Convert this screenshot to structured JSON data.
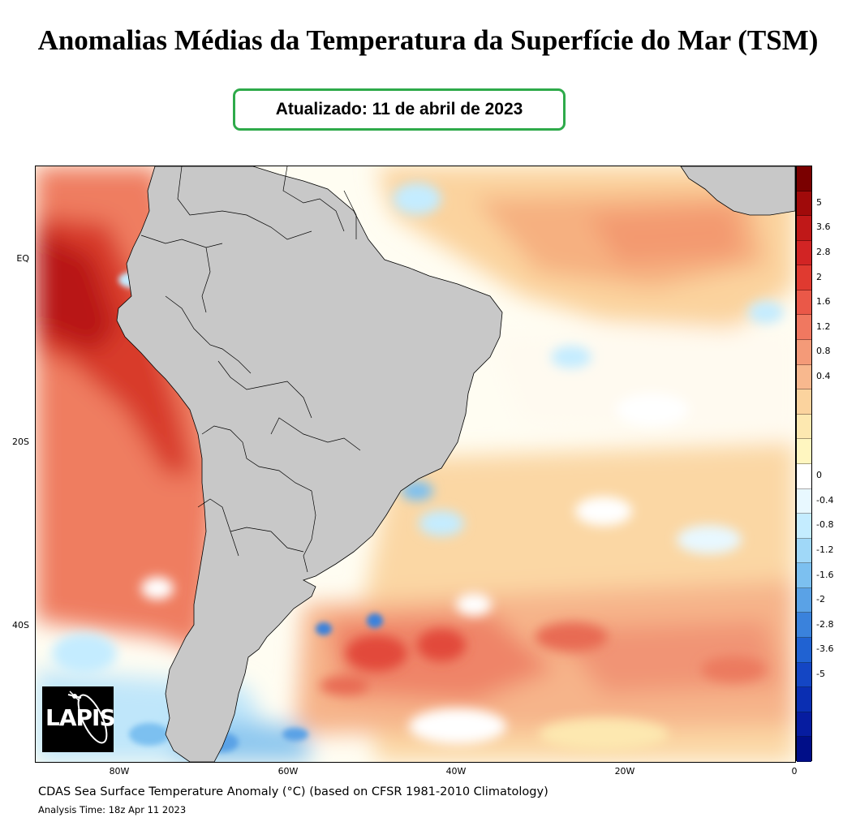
{
  "title": "Anomalias Médias da Temperatura da Superfície do Mar (TSM)",
  "updated": "Atualizado: 11 de abril de 2023",
  "map": {
    "lat_labels": [
      "EQ",
      "20S",
      "40S"
    ],
    "lon_labels": [
      "80W",
      "60W",
      "40W",
      "20W",
      "0"
    ],
    "land_color": "#c8c8c8"
  },
  "colorbar": {
    "colors": [
      "#7a0000",
      "#a00a0a",
      "#c01818",
      "#d22424",
      "#e03a30",
      "#ea5848",
      "#f07860",
      "#f49a78",
      "#f8b88e",
      "#fbd39e",
      "#fde8b0",
      "#fff6c0",
      "#ffffff",
      "#e8f8ff",
      "#c4ecff",
      "#a0d8f8",
      "#7cc0f0",
      "#5aa2e6",
      "#3a82dc",
      "#2062d2",
      "#1446c4",
      "#0a2eb2",
      "#061ca0",
      "#000e88"
    ],
    "labels": [
      "5",
      "3.6",
      "2.8",
      "2",
      "1.6",
      "1.2",
      "0.8",
      "0.4",
      "0",
      "-0.4",
      "-0.8",
      "-1.2",
      "-1.6",
      "-2",
      "-2.8",
      "-3.6",
      "-5"
    ]
  },
  "logo": {
    "text": "LAPIS"
  },
  "caption": "CDAS Sea Surface Temperature Anomaly (°C) (based on CFSR 1981-2010 Climatology)",
  "analysis_time": "Analysis Time: 18z Apr 11 2023"
}
